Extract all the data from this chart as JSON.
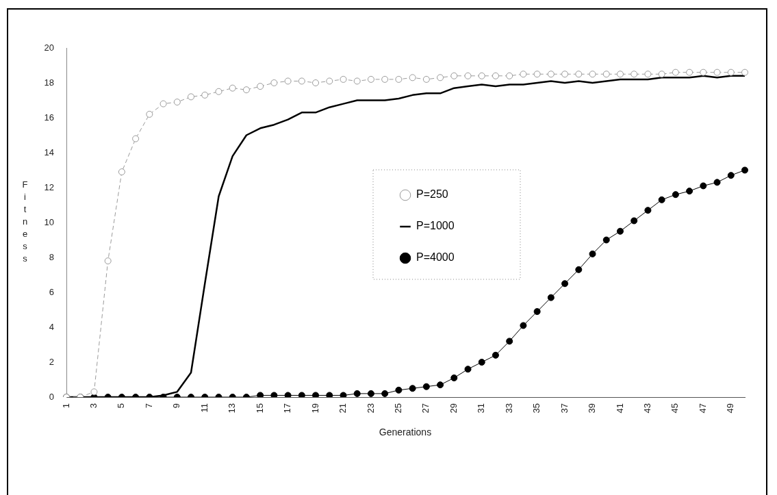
{
  "chart_data": {
    "type": "line",
    "xlabel": "Generations",
    "ylabel": "Fitness",
    "categories": [
      "1",
      null,
      "3",
      null,
      "5",
      null,
      "7",
      null,
      "9",
      null,
      "11",
      null,
      "13",
      null,
      "15",
      null,
      "17",
      null,
      "19",
      null,
      "21",
      null,
      "23",
      null,
      "25",
      null,
      "27",
      null,
      "29",
      null,
      "31",
      null,
      "33",
      null,
      "35",
      null,
      "37",
      null,
      "39",
      null,
      "41",
      null,
      "43",
      null,
      "45",
      null,
      "47",
      null,
      "49",
      null
    ],
    "series": [
      {
        "name": "P=250",
        "color": "#9a9a9a",
        "marker": "circle",
        "line_style": "dashed",
        "values": [
          0,
          0,
          0.3,
          7.8,
          12.9,
          14.8,
          16.2,
          16.8,
          16.9,
          17.2,
          17.3,
          17.5,
          17.7,
          17.6,
          17.8,
          18.0,
          18.1,
          18.1,
          18.0,
          18.1,
          18.2,
          18.1,
          18.2,
          18.2,
          18.2,
          18.3,
          18.2,
          18.3,
          18.4,
          18.4,
          18.4,
          18.4,
          18.4,
          18.5,
          18.5,
          18.5,
          18.5,
          18.5,
          18.5,
          18.5,
          18.5,
          18.5,
          18.5,
          18.5,
          18.6,
          18.6,
          18.6,
          18.6,
          18.6,
          18.6
        ]
      },
      {
        "name": "P=1000",
        "color": "#000000",
        "marker": "none",
        "line_style": "solid",
        "values": [
          0,
          0,
          0,
          0,
          0,
          0,
          0,
          0.1,
          0.3,
          1.4,
          6.5,
          11.5,
          13.8,
          15.0,
          15.4,
          15.6,
          15.9,
          16.3,
          16.3,
          16.6,
          16.8,
          17.0,
          17.0,
          17.0,
          17.1,
          17.3,
          17.4,
          17.4,
          17.7,
          17.8,
          17.9,
          17.8,
          17.9,
          17.9,
          18.0,
          18.1,
          18.0,
          18.1,
          18.0,
          18.1,
          18.2,
          18.2,
          18.2,
          18.3,
          18.3,
          18.3,
          18.4,
          18.3,
          18.4,
          18.4
        ]
      },
      {
        "name": "P=4000",
        "color": "#000000",
        "marker": "circle",
        "line_style": "solid",
        "values": [
          0,
          0,
          0,
          0,
          0,
          0,
          0,
          0,
          0,
          0,
          0,
          0,
          0,
          0,
          0.1,
          0.1,
          0.1,
          0.1,
          0.1,
          0.1,
          0.1,
          0.2,
          0.2,
          0.2,
          0.4,
          0.5,
          0.6,
          0.7,
          1.1,
          1.6,
          2.0,
          2.4,
          3.2,
          4.1,
          4.9,
          5.7,
          6.5,
          7.3,
          8.2,
          9.0,
          9.5,
          10.1,
          10.7,
          11.3,
          11.6,
          11.8,
          12.1,
          12.3,
          12.7,
          13.0
        ]
      }
    ],
    "ylim": [
      0,
      20
    ],
    "yticks": [
      0,
      2,
      4,
      6,
      8,
      10,
      12,
      14,
      16,
      18,
      20
    ],
    "grid": false,
    "legend": "center"
  }
}
